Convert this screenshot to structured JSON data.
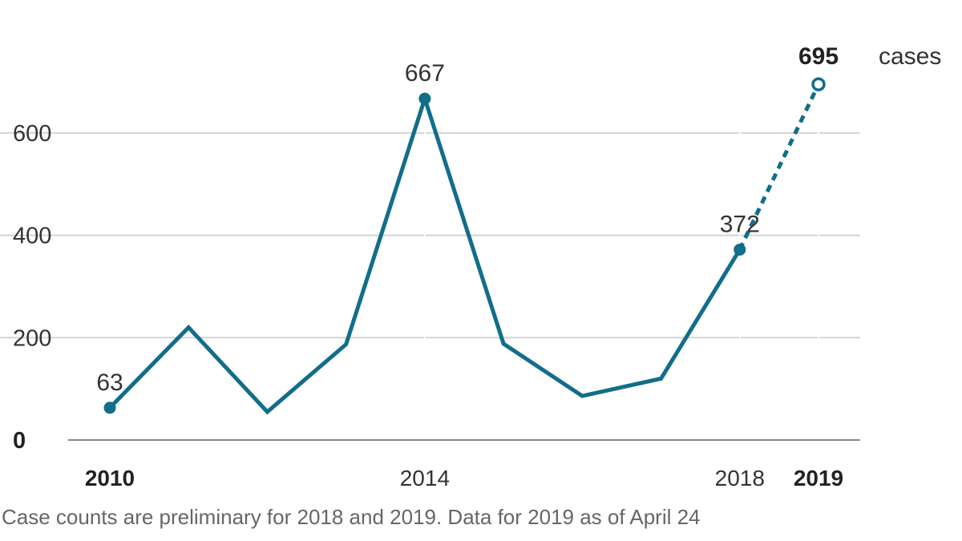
{
  "chart_data": {
    "type": "line",
    "title": "",
    "xlabel": "",
    "ylabel": "",
    "unit_label": "cases",
    "x": [
      2010,
      2011,
      2012,
      2013,
      2014,
      2015,
      2016,
      2017,
      2018,
      2019
    ],
    "values": [
      63,
      220,
      55,
      187,
      667,
      188,
      86,
      120,
      372,
      695
    ],
    "preliminary_from": 2018,
    "ylim": [
      0,
      700
    ],
    "xlim": [
      2010,
      2019
    ],
    "yticks": [
      0,
      200,
      400,
      600
    ],
    "ytick_labels": [
      "0",
      "200",
      "400",
      "600"
    ],
    "xticks": [
      2010,
      2014,
      2018,
      2019
    ],
    "xtick_labels": [
      "2010",
      "2014",
      "2018",
      "2019"
    ],
    "bold_xticks": [
      "2010",
      "2019"
    ],
    "data_labels": [
      {
        "x": 2010,
        "text": "63"
      },
      {
        "x": 2014,
        "text": "667"
      },
      {
        "x": 2018,
        "text": "372"
      },
      {
        "x": 2019,
        "text": "695"
      }
    ],
    "grid": true,
    "legend": "none",
    "line_color": "#116e8a",
    "note": "Case counts are preliminary for 2018 and 2019. Data for 2019 as of April 24"
  }
}
